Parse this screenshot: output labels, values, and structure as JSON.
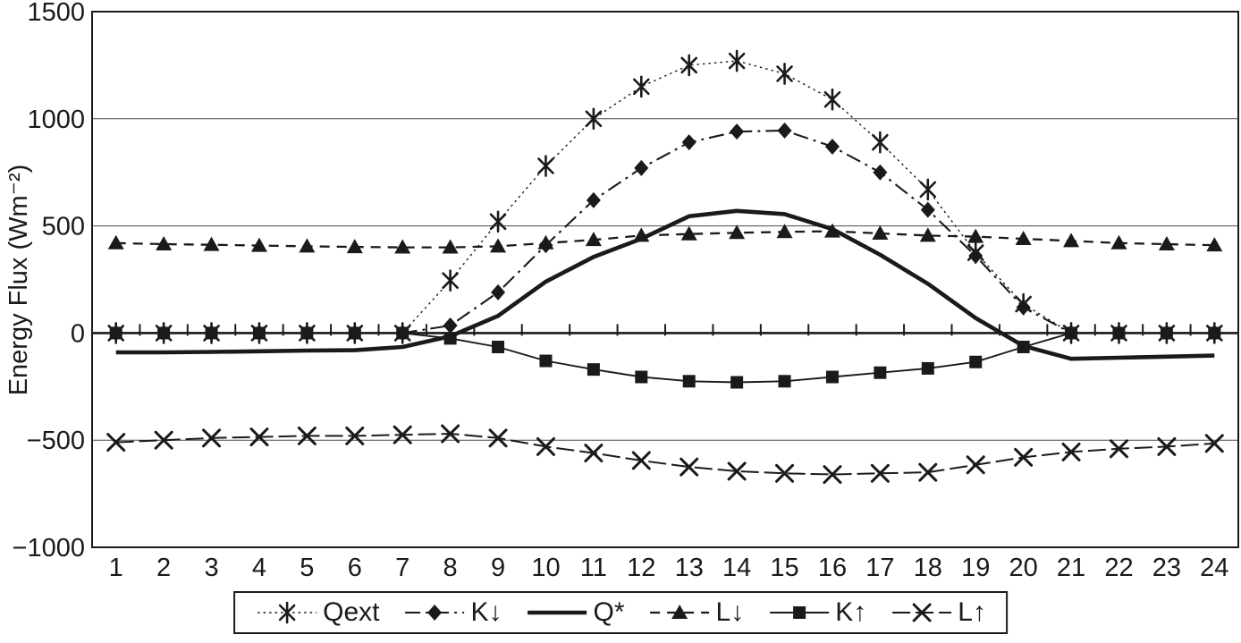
{
  "colors": {
    "ink": "#1a1a1a",
    "grid": "#4a4a4a",
    "background": "#ffffff"
  },
  "chart_data": {
    "type": "line",
    "title": "",
    "xlabel": "",
    "ylabel": "Energy Flux  (Wm⁻²)",
    "x": [
      1,
      2,
      3,
      4,
      5,
      6,
      7,
      8,
      9,
      10,
      11,
      12,
      13,
      14,
      15,
      16,
      17,
      18,
      19,
      20,
      21,
      22,
      23,
      24
    ],
    "x_tick_labels": [
      "1",
      "2",
      "3",
      "4",
      "5",
      "6",
      "7",
      "8",
      "9",
      "10",
      "11",
      "12",
      "13",
      "14",
      "15",
      "16",
      "17",
      "18",
      "19",
      "20",
      "21",
      "22",
      "23",
      "24"
    ],
    "ylim": [
      -1000,
      1500
    ],
    "yticks": [
      -1000,
      -500,
      0,
      500,
      1000,
      1500
    ],
    "y_tick_labels": [
      "−1000",
      "−500",
      "0",
      "500",
      "1000",
      "1500"
    ],
    "gridlines_at": [
      -500,
      500,
      1000
    ],
    "zero_axis": true,
    "grid": true,
    "legend_position": "bottom",
    "series": [
      {
        "name": "Qext",
        "legend_label": "Qext",
        "marker": "asterisk",
        "line": "dotted",
        "values": [
          0,
          0,
          0,
          0,
          0,
          0,
          0,
          245,
          520,
          780,
          1000,
          1150,
          1250,
          1270,
          1210,
          1090,
          890,
          670,
          375,
          135,
          0,
          0,
          0,
          0
        ]
      },
      {
        "name": "K_down",
        "legend_label": "K↓",
        "marker": "diamond",
        "line": "dashdot",
        "values": [
          0,
          0,
          0,
          0,
          0,
          0,
          0,
          35,
          190,
          410,
          620,
          770,
          890,
          940,
          945,
          870,
          750,
          575,
          360,
          120,
          0,
          0,
          0,
          0
        ]
      },
      {
        "name": "Q_star",
        "legend_label": "Q*",
        "marker": "none",
        "line": "solidthick",
        "values": [
          -90,
          -90,
          -88,
          -85,
          -82,
          -80,
          -65,
          -15,
          80,
          240,
          355,
          440,
          545,
          570,
          555,
          485,
          365,
          230,
          70,
          -60,
          -120,
          -115,
          -110,
          -105
        ]
      },
      {
        "name": "L_down",
        "legend_label": "L↓",
        "marker": "triangle",
        "line": "dashed",
        "values": [
          420,
          415,
          412,
          408,
          405,
          402,
          400,
          400,
          405,
          420,
          435,
          455,
          462,
          468,
          472,
          475,
          465,
          455,
          450,
          440,
          430,
          420,
          415,
          410
        ]
      },
      {
        "name": "K_up",
        "legend_label": "K↑",
        "marker": "square",
        "line": "solid",
        "values": [
          0,
          0,
          0,
          0,
          0,
          0,
          0,
          -25,
          -65,
          -130,
          -170,
          -205,
          -225,
          -230,
          -225,
          -205,
          -185,
          -165,
          -135,
          -65,
          0,
          0,
          0,
          0
        ]
      },
      {
        "name": "L_up",
        "legend_label": "L↑",
        "marker": "x",
        "line": "longdash",
        "values": [
          -510,
          -500,
          -490,
          -485,
          -480,
          -480,
          -475,
          -470,
          -490,
          -530,
          -560,
          -595,
          -625,
          -645,
          -655,
          -660,
          -655,
          -650,
          -615,
          -580,
          -555,
          -540,
          -530,
          -515
        ]
      }
    ]
  }
}
